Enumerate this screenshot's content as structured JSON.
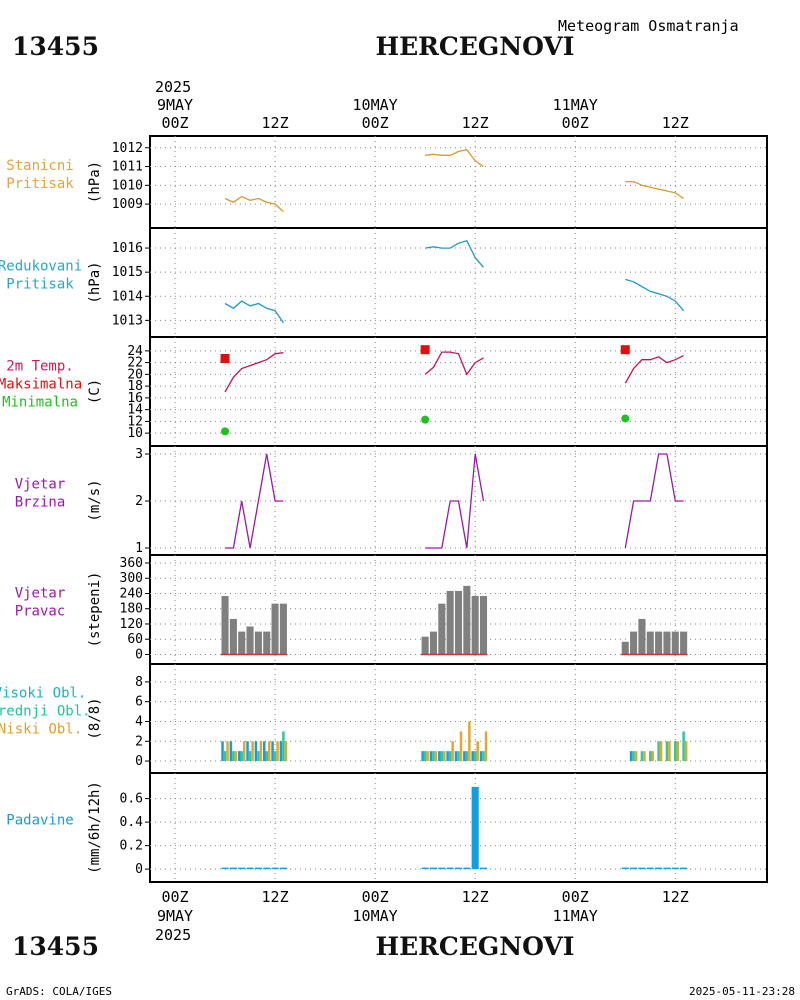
{
  "header": {
    "station_id": "13455",
    "station_name": "HERCEGNOVI",
    "subtitle": "Meteogram Osmatranja"
  },
  "footer": {
    "station_id": "13455",
    "station_name": "HERCEGNOVI",
    "credit": "GrADS: COLA/IGES",
    "timestamp": "2025-05-11-23:28"
  },
  "time_axis": {
    "top_year": "2025",
    "bottom_year": "2025",
    "days": [
      {
        "label": "9MAY",
        "hour": 0
      },
      {
        "label": "10MAY",
        "hour": 24
      },
      {
        "label": "11MAY",
        "hour": 48
      }
    ],
    "ticks": [
      {
        "label": "00Z",
        "hour": 0
      },
      {
        "label": "12Z",
        "hour": 12
      },
      {
        "label": "00Z",
        "hour": 24
      },
      {
        "label": "12Z",
        "hour": 36
      },
      {
        "label": "00Z",
        "hour": 48
      },
      {
        "label": "12Z",
        "hour": 60
      }
    ],
    "range_hours": [
      -3,
      71
    ]
  },
  "chart_data": [
    {
      "type": "line",
      "id": "station-pressure",
      "labels": [
        "Stanicni",
        "Pritisak"
      ],
      "label_color": "#e8a33a",
      "unit": "(hPa)",
      "ylim": [
        1008.1,
        1012.2
      ],
      "yticks": [
        1009,
        1010,
        1011,
        1012
      ],
      "series": [
        {
          "name": "Stanicni pritisak",
          "color": "#d89a2a",
          "segments": [
            {
              "x": [
                6,
                7,
                8,
                9,
                10,
                11,
                12,
                13
              ],
              "y": [
                1009.3,
                1009.1,
                1009.4,
                1009.2,
                1009.3,
                1009.1,
                1009.0,
                1008.6
              ]
            },
            {
              "x": [
                30,
                31,
                32,
                33,
                34,
                35,
                36,
                37
              ],
              "y": [
                1011.6,
                1011.65,
                1011.6,
                1011.6,
                1011.8,
                1011.9,
                1011.3,
                1011.0
              ]
            },
            {
              "x": [
                54,
                55,
                56,
                57,
                58,
                59,
                60,
                61
              ],
              "y": [
                1010.2,
                1010.2,
                1010.0,
                1009.9,
                1009.8,
                1009.7,
                1009.6,
                1009.3
              ]
            }
          ]
        }
      ]
    },
    {
      "type": "line",
      "id": "reduced-pressure",
      "labels": [
        "Redukovani",
        "Pritisak"
      ],
      "label_color": "#2aa6c9",
      "unit": "(hPa)",
      "ylim": [
        1012.6,
        1016.5
      ],
      "yticks": [
        1013,
        1014,
        1015,
        1016
      ],
      "series": [
        {
          "name": "Redukovani pritisak",
          "color": "#1c9ad0",
          "segments": [
            {
              "x": [
                6,
                7,
                8,
                9,
                10,
                11,
                12,
                13
              ],
              "y": [
                1013.7,
                1013.5,
                1013.8,
                1013.6,
                1013.7,
                1013.5,
                1013.4,
                1012.9
              ]
            },
            {
              "x": [
                30,
                31,
                32,
                33,
                34,
                35,
                36,
                37
              ],
              "y": [
                1016.0,
                1016.05,
                1016.0,
                1016.0,
                1016.2,
                1016.3,
                1015.6,
                1015.2
              ]
            },
            {
              "x": [
                54,
                55,
                56,
                57,
                58,
                59,
                60,
                61
              ],
              "y": [
                1014.7,
                1014.6,
                1014.4,
                1014.2,
                1014.1,
                1014.0,
                1013.8,
                1013.4
              ]
            }
          ]
        }
      ]
    },
    {
      "type": "line",
      "id": "temperature",
      "labels": [
        "2m Temp.",
        "Maksimalna",
        "Minimalna"
      ],
      "label_colors": [
        "#d0185a",
        "#e01010",
        "#20c020"
      ],
      "unit": "(C)",
      "ylim": [
        9,
        25
      ],
      "yticks": [
        10,
        12,
        14,
        16,
        18,
        20,
        22,
        24
      ],
      "series": [
        {
          "name": "2m Temp.",
          "color": "#c8105a",
          "segments": [
            {
              "x": [
                6,
                7,
                8,
                9,
                10,
                11,
                12,
                13
              ],
              "y": [
                17.0,
                19.5,
                21.0,
                21.5,
                22.0,
                22.5,
                23.5,
                23.7
              ]
            },
            {
              "x": [
                30,
                31,
                32,
                33,
                34,
                35,
                36,
                37
              ],
              "y": [
                20.0,
                21.2,
                23.8,
                23.8,
                23.5,
                20.0,
                22.0,
                22.8
              ]
            },
            {
              "x": [
                54,
                55,
                56,
                57,
                58,
                59,
                60,
                61
              ],
              "y": [
                18.5,
                21.0,
                22.5,
                22.5,
                23.0,
                22.0,
                22.5,
                23.2
              ]
            }
          ]
        }
      ],
      "max_markers": {
        "color": "#e01010",
        "x": [
          6,
          30,
          54
        ],
        "y": [
          22.7,
          24.2,
          24.2
        ]
      },
      "min_markers": {
        "color": "#20c020",
        "x": [
          6,
          30,
          54
        ],
        "y": [
          10.3,
          12.3,
          12.5
        ]
      }
    },
    {
      "type": "line",
      "id": "wind-speed",
      "labels": [
        "Vjetar",
        "Brzina"
      ],
      "label_color": "#9a1aa8",
      "unit": "(m/s)",
      "ylim": [
        1,
        3
      ],
      "yticks": [
        1,
        2,
        3
      ],
      "series": [
        {
          "name": "Vjetar brzina",
          "color": "#9a1aa8",
          "segments": [
            {
              "x": [
                6,
                7,
                8,
                9,
                10,
                11,
                12,
                13
              ],
              "y": [
                1,
                1,
                2,
                1,
                2,
                3,
                2,
                2
              ]
            },
            {
              "x": [
                30,
                31,
                32,
                33,
                34,
                35,
                36,
                37
              ],
              "y": [
                1,
                1,
                1,
                2,
                2,
                1,
                3,
                2
              ]
            },
            {
              "x": [
                54,
                55,
                56,
                57,
                58,
                59,
                60,
                61
              ],
              "y": [
                1,
                2,
                2,
                2,
                3,
                3,
                2,
                2
              ]
            }
          ]
        }
      ]
    },
    {
      "type": "bar",
      "id": "wind-direction",
      "labels": [
        "Vjetar",
        "Pravac"
      ],
      "label_color": "#9a1aa8",
      "unit": "(stepeni)",
      "ylim": [
        -10,
        360
      ],
      "yticks": [
        0,
        60,
        120,
        180,
        240,
        300,
        360
      ],
      "series": [
        {
          "name": "Vjetar pravac",
          "color": "#808080",
          "x": [
            6,
            7,
            8,
            9,
            10,
            11,
            12,
            13,
            30,
            31,
            32,
            33,
            34,
            35,
            36,
            37,
            54,
            55,
            56,
            57,
            58,
            59,
            60,
            61
          ],
          "values": [
            230,
            140,
            90,
            110,
            90,
            90,
            200,
            200,
            70,
            90,
            200,
            250,
            250,
            270,
            230,
            230,
            50,
            90,
            140,
            90,
            90,
            90,
            90,
            90
          ]
        }
      ]
    },
    {
      "type": "bar",
      "id": "cloud-cover",
      "labels": [
        "Visoki Obl.",
        "Srednji Obl.",
        "Niski Obl."
      ],
      "label_colors": [
        "#1ab0c8",
        "#18c898",
        "#e0a030"
      ],
      "unit": "(8/8)",
      "ylim": [
        -0.5,
        9
      ],
      "yticks": [
        0,
        2,
        4,
        6,
        8
      ],
      "series": [
        {
          "name": "Visoki Obl.",
          "color": "#1a9ae0",
          "x": [
            6,
            7,
            8,
            9,
            10,
            11,
            12,
            13,
            30,
            31,
            32,
            33,
            34,
            35,
            36,
            37,
            54,
            55,
            56,
            57,
            58,
            59,
            60,
            61
          ],
          "values": [
            2,
            2,
            1,
            2,
            2,
            2,
            2,
            2,
            1,
            1,
            1,
            1,
            1,
            1,
            1,
            1,
            0,
            1,
            0,
            0,
            0,
            0,
            0,
            0
          ]
        },
        {
          "name": "Srednji Obl.",
          "color": "#30c8a0",
          "x": [
            6,
            7,
            8,
            9,
            10,
            11,
            12,
            13,
            30,
            31,
            32,
            33,
            34,
            35,
            36,
            37,
            54,
            55,
            56,
            57,
            58,
            59,
            60,
            61
          ],
          "values": [
            1,
            1,
            1,
            1,
            1,
            1,
            1,
            3,
            1,
            1,
            1,
            1,
            1,
            1,
            1,
            1,
            0,
            1,
            1,
            1,
            2,
            2,
            2,
            3
          ]
        },
        {
          "name": "Niski Obl.",
          "color": "#e0a830",
          "x": [
            6,
            7,
            8,
            9,
            10,
            11,
            12,
            13,
            30,
            31,
            32,
            33,
            34,
            35,
            36,
            37,
            54,
            55,
            56,
            57,
            58,
            59,
            60,
            61
          ],
          "values": [
            2,
            1,
            2,
            2,
            2,
            2,
            2,
            2,
            1,
            1,
            1,
            2,
            3,
            4,
            2,
            3,
            0,
            1,
            1,
            1,
            2,
            2,
            2,
            2
          ]
        }
      ]
    },
    {
      "type": "bar",
      "id": "precipitation",
      "labels": [
        "Padavine"
      ],
      "label_color": "#1a9ae0",
      "unit": "(mm/6h/12h)",
      "ylim": [
        -0.05,
        0.75
      ],
      "yticks": [
        0,
        0.2,
        0.4,
        0.6
      ],
      "series": [
        {
          "name": "Padavine",
          "color": "#10a0e0",
          "x": [
            6,
            7,
            8,
            9,
            10,
            11,
            12,
            13,
            30,
            31,
            32,
            33,
            34,
            35,
            36,
            37,
            54,
            55,
            56,
            57,
            58,
            59,
            60,
            61
          ],
          "values": [
            0,
            0,
            0,
            0,
            0,
            0,
            0,
            0,
            0,
            0,
            0,
            0,
            0,
            0,
            0.7,
            0,
            0,
            0,
            0,
            0,
            0,
            0,
            0,
            0
          ]
        }
      ]
    }
  ]
}
